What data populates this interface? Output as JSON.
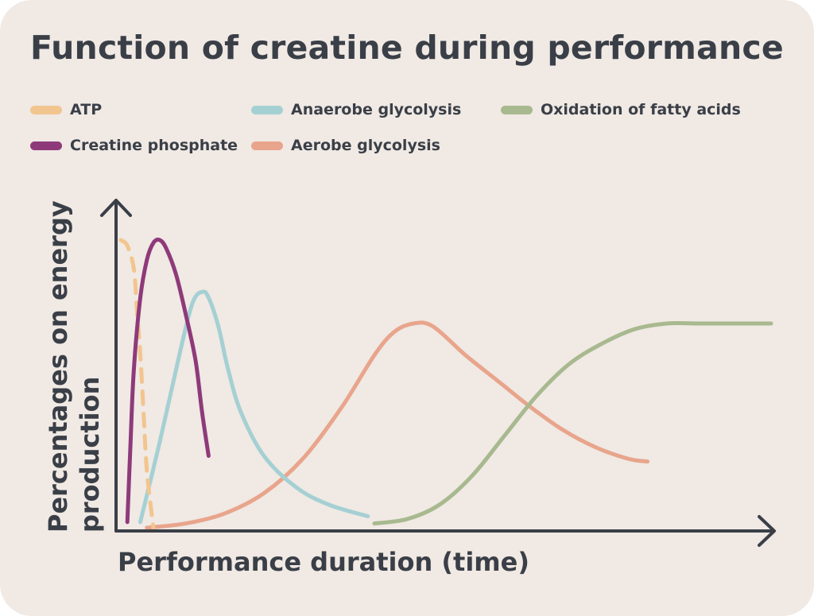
{
  "chart_data": {
    "type": "line",
    "title": "Function of creatine during performance",
    "xlabel": "Performance duration (time)",
    "ylabel_lines": [
      "Percentages on energy",
      "production"
    ],
    "xlim": [
      0,
      100
    ],
    "ylim": [
      0,
      100
    ],
    "grid": false,
    "legend_placement": "top",
    "series": [
      {
        "name": "ATP",
        "color": "#f2c58f",
        "dashed": true,
        "x": [
          0,
          1,
          2,
          2.5,
          3,
          3.5,
          4,
          5
        ],
        "y": [
          100,
          98,
          90,
          75,
          60,
          40,
          20,
          0
        ]
      },
      {
        "name": "Creatine phosphate",
        "color": "#8e3a7a",
        "dashed": false,
        "x": [
          1,
          1.5,
          2,
          3,
          4,
          5,
          6,
          7,
          8.5,
          10,
          11.5,
          12.5,
          13.5
        ],
        "y": [
          2,
          30,
          55,
          80,
          93,
          99,
          100,
          97,
          88,
          74,
          58,
          40,
          25
        ]
      },
      {
        "name": "Anaerobe glycolysis",
        "color": "#a5d0d3",
        "dashed": false,
        "x": [
          3,
          6,
          9,
          11,
          12.5,
          13.5,
          15,
          16.5,
          18.5,
          22,
          27,
          32,
          38
        ],
        "y": [
          2,
          30,
          60,
          78,
          82,
          80,
          70,
          55,
          40,
          25,
          14,
          8,
          4
        ]
      },
      {
        "name": "Aerobe glycolysis",
        "color": "#e8a58c",
        "dashed": false,
        "x": [
          4,
          10,
          16,
          22,
          28,
          34,
          39,
          42,
          45,
          48,
          53,
          58,
          63,
          68,
          73,
          78,
          81
        ],
        "y": [
          0,
          1.5,
          5,
          12,
          24,
          42,
          60,
          68,
          71,
          70,
          60,
          51,
          42,
          34,
          28,
          24,
          23
        ]
      },
      {
        "name": "Oxidation of fatty acids",
        "color": "#a8b98f",
        "dashed": false,
        "x": [
          39,
          44,
          49,
          54,
          59,
          64,
          69,
          74,
          79,
          84,
          89,
          94,
          100
        ],
        "y": [
          1.5,
          3,
          8,
          18,
          32,
          46,
          57,
          64,
          69,
          71,
          71,
          71,
          71
        ]
      }
    ]
  },
  "legend": [
    {
      "label": "ATP",
      "color": "#f2c58f"
    },
    {
      "label": "Anaerobe glycolysis",
      "color": "#a5d0d3"
    },
    {
      "label": "Oxidation of fatty acids",
      "color": "#a8b98f"
    },
    {
      "label": "Creatine phosphate",
      "color": "#8e3a7a"
    },
    {
      "label": "Aerobe glycolysis",
      "color": "#e8a58c"
    }
  ],
  "colors": {
    "background": "#f0e9e4",
    "text": "#3a3f47",
    "axis": "#3a3f47"
  }
}
